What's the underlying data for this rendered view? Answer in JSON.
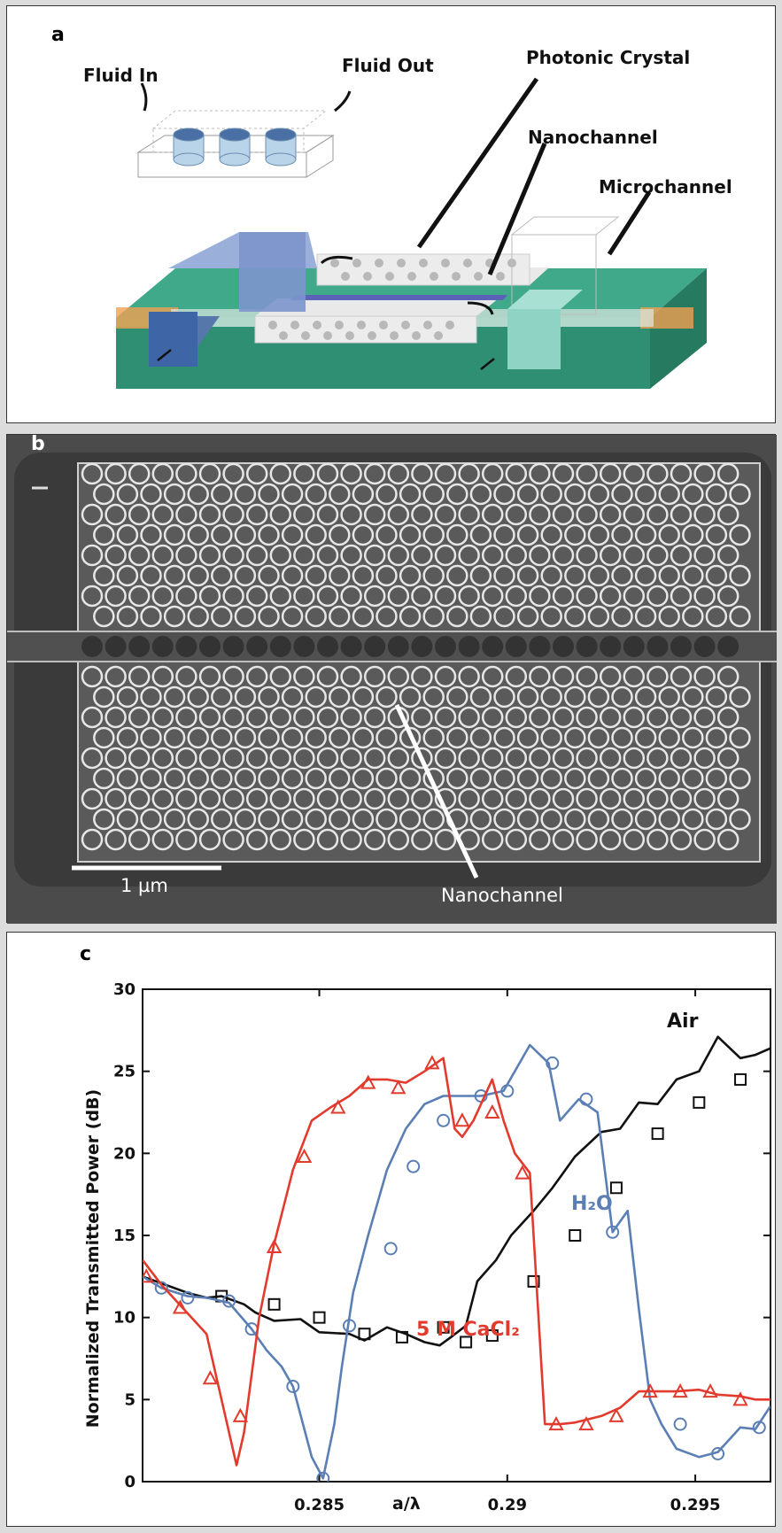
{
  "panel_a": {
    "label": "a",
    "fluid_in": "Fluid In",
    "fluid_out": "Fluid Out",
    "photonic_crystal": "Photonic Crystal",
    "nanochannel": "Nanochannel",
    "microchannel": "Microchannel"
  },
  "panel_b": {
    "label": "b",
    "scale_bar": "1 µm",
    "nanochannel": "Nanochannel"
  },
  "panel_c": {
    "label": "c",
    "ylabel": "Normalized Transmitted Power (dB)",
    "xlabel": "a/λ",
    "series_labels": {
      "air": "Air",
      "h2o": "H₂O",
      "cacl2": "5 M CaCl₂"
    }
  },
  "chart_data": {
    "type": "line",
    "xlabel": "a/λ",
    "ylabel": "Normalized Transmitted Power (dB)",
    "xlim": [
      0.2803,
      0.297
    ],
    "ylim": [
      0,
      30
    ],
    "xticks": [
      0.285,
      0.29,
      0.295
    ],
    "yticks": [
      0,
      5,
      10,
      15,
      20,
      25,
      30
    ],
    "grid": false,
    "series": [
      {
        "name": "Air",
        "color": "#111111",
        "marker": "square",
        "x": [
          0.2803,
          0.2815,
          0.282,
          0.2824,
          0.283,
          0.2833,
          0.2838,
          0.2845,
          0.285,
          0.2858,
          0.2862,
          0.2868,
          0.2873,
          0.2878,
          0.2882,
          0.2885,
          0.2889,
          0.2892,
          0.2897,
          0.2901,
          0.2907,
          0.2912,
          0.2918,
          0.2925,
          0.293,
          0.2935,
          0.294,
          0.2945,
          0.2951,
          0.2956,
          0.2962,
          0.2966,
          0.297
        ],
        "y": [
          12.5,
          11.5,
          11.2,
          11.3,
          10.8,
          10.3,
          9.8,
          9.9,
          9.1,
          9.0,
          8.6,
          9.4,
          9.0,
          8.5,
          8.3,
          8.8,
          9.5,
          12.2,
          13.5,
          15.0,
          16.5,
          17.9,
          19.8,
          21.3,
          21.5,
          23.1,
          23.0,
          24.5,
          25.0,
          27.1,
          25.8,
          26.0,
          26.4
        ],
        "markers_x": [
          0.2824,
          0.2838,
          0.285,
          0.2862,
          0.2872,
          0.2883,
          0.2889,
          0.2896,
          0.2907,
          0.2918,
          0.2929,
          0.294,
          0.2951,
          0.2962
        ],
        "markers_y": [
          11.3,
          10.8,
          10.0,
          9.0,
          8.8,
          9.4,
          8.5,
          8.9,
          12.2,
          15.0,
          17.9,
          21.2,
          23.1,
          24.5
        ]
      },
      {
        "name": "H₂O",
        "color": "#5b7fb5",
        "marker": "circle",
        "x": [
          0.2803,
          0.2808,
          0.2815,
          0.282,
          0.2826,
          0.2832,
          0.2836,
          0.284,
          0.2843,
          0.2848,
          0.2851,
          0.2854,
          0.2856,
          0.2859,
          0.2863,
          0.2868,
          0.2873,
          0.2878,
          0.2883,
          0.2888,
          0.2893,
          0.2899,
          0.2906,
          0.2911,
          0.2914,
          0.2919,
          0.2924,
          0.2928,
          0.2932,
          0.2935,
          0.2938,
          0.2941,
          0.2945,
          0.2951,
          0.2956,
          0.2962,
          0.2966,
          0.297
        ],
        "y": [
          12.5,
          11.8,
          11.3,
          11.2,
          10.9,
          9.3,
          8.0,
          7.0,
          5.8,
          1.5,
          0.2,
          3.5,
          7.0,
          11.5,
          15.0,
          19.0,
          21.5,
          23.0,
          23.5,
          23.5,
          23.5,
          23.8,
          26.6,
          25.5,
          22.0,
          23.3,
          22.5,
          15.2,
          16.5,
          10.5,
          5.0,
          3.5,
          2.0,
          1.5,
          1.8,
          3.3,
          3.2,
          4.6
        ],
        "markers_x": [
          0.2808,
          0.2815,
          0.2826,
          0.2832,
          0.2843,
          0.2851,
          0.2858,
          0.2869,
          0.2875,
          0.2883,
          0.2893,
          0.29,
          0.2912,
          0.2921,
          0.2928,
          0.2946,
          0.2956,
          0.2967
        ],
        "markers_y": [
          11.8,
          11.2,
          11.0,
          9.3,
          5.8,
          0.2,
          9.5,
          14.2,
          19.2,
          22.0,
          23.5,
          23.8,
          25.5,
          23.3,
          15.2,
          3.5,
          1.7,
          3.3
        ]
      },
      {
        "name": "5 M CaCl₂",
        "color": "#e23b2e",
        "marker": "triangle",
        "x": [
          0.2803,
          0.2808,
          0.2814,
          0.282,
          0.2825,
          0.2828,
          0.283,
          0.2834,
          0.2838,
          0.2843,
          0.2848,
          0.2853,
          0.2858,
          0.2863,
          0.2868,
          0.2873,
          0.2878,
          0.2883,
          0.2886,
          0.2888,
          0.2891,
          0.2896,
          0.2899,
          0.2902,
          0.2906,
          0.291,
          0.2914,
          0.2918,
          0.2925,
          0.293,
          0.2935,
          0.294,
          0.2945,
          0.2951,
          0.2956,
          0.2962,
          0.2966,
          0.297
        ],
        "y": [
          13.5,
          12.0,
          10.5,
          9.0,
          4.0,
          1.0,
          3.0,
          10.0,
          14.5,
          19.0,
          22.0,
          22.8,
          23.5,
          24.5,
          24.5,
          24.3,
          25.0,
          25.8,
          21.5,
          21.0,
          22.0,
          24.5,
          22.0,
          20.0,
          18.8,
          3.5,
          3.5,
          3.6,
          4.0,
          4.5,
          5.5,
          5.5,
          5.5,
          5.6,
          5.3,
          5.2,
          5.0,
          5.0
        ],
        "markers_x": [
          0.2804,
          0.2813,
          0.2821,
          0.2829,
          0.2838,
          0.2846,
          0.2855,
          0.2863,
          0.2871,
          0.288,
          0.2888,
          0.2896,
          0.2904,
          0.2913,
          0.2921,
          0.2929,
          0.2938,
          0.2946,
          0.2954,
          0.2962
        ],
        "markers_y": [
          12.5,
          10.6,
          6.3,
          4.0,
          14.3,
          19.8,
          22.8,
          24.3,
          24.0,
          25.5,
          22.0,
          22.5,
          18.8,
          3.5,
          3.5,
          4.0,
          5.5,
          5.5,
          5.5,
          5.0
        ]
      }
    ]
  }
}
